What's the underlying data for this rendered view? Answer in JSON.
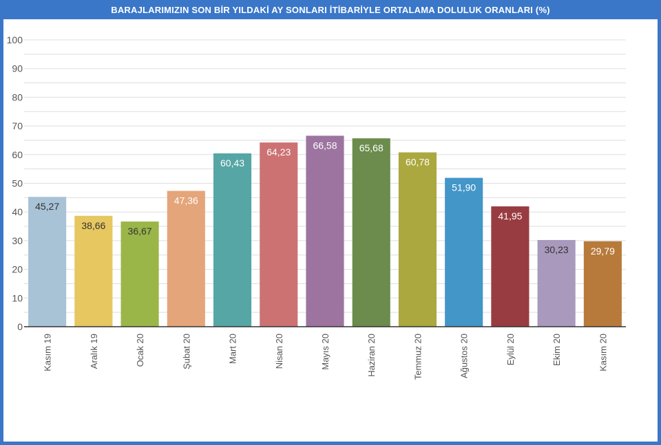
{
  "title": "BARAJLARIMIZIN SON BİR YILDAKİ AY SONLARI İTİBARİYLE ORTALAMA DOLULUK ORANLARI (%)",
  "colors": {
    "frame": "#3a77c9",
    "grid": "#dddddd",
    "axis": "#333333",
    "label_dark": "#333333",
    "label_light": "#ffffff"
  },
  "chart_data": {
    "type": "bar",
    "title": "BARAJLARIMIZIN SON BİR YILDAKİ AY SONLARI İTİBARİYLE ORTALAMA DOLULUK ORANLARI (%)",
    "xlabel": "",
    "ylabel": "",
    "ylim": [
      0,
      100
    ],
    "yticks": [
      0,
      10,
      20,
      30,
      40,
      50,
      60,
      70,
      80,
      90,
      100
    ],
    "grid": true,
    "legend": "none",
    "categories": [
      "Kasım 19",
      "Aralık 19",
      "Ocak 20",
      "Şubat 20",
      "Mart 20",
      "Nisan 20",
      "Mayıs 20",
      "Haziran 20",
      "Temmuz 20",
      "Ağustos 20",
      "Eylül 20",
      "Ekim 20",
      "Kasım 20"
    ],
    "values": [
      45.27,
      38.66,
      36.67,
      47.36,
      60.43,
      64.23,
      66.58,
      65.68,
      60.78,
      51.9,
      41.95,
      30.23,
      29.79
    ],
    "data_labels": [
      "45,27",
      "38,66",
      "36,67",
      "47,36",
      "60,43",
      "64,23",
      "66,58",
      "65,68",
      "60,78",
      "51,90",
      "41,95",
      "30,23",
      "29,79"
    ],
    "bar_colors": [
      "#a8c3d6",
      "#e6c760",
      "#9ab649",
      "#e5a57a",
      "#56a6a5",
      "#cc7273",
      "#9d74a0",
      "#6b8c4d",
      "#aba83f",
      "#4396c8",
      "#993c42",
      "#a899bd",
      "#b87a3a"
    ],
    "label_colors": [
      "#333333",
      "#333333",
      "#333333",
      "#ffffff",
      "#ffffff",
      "#ffffff",
      "#ffffff",
      "#ffffff",
      "#ffffff",
      "#ffffff",
      "#ffffff",
      "#333333",
      "#ffffff"
    ]
  }
}
